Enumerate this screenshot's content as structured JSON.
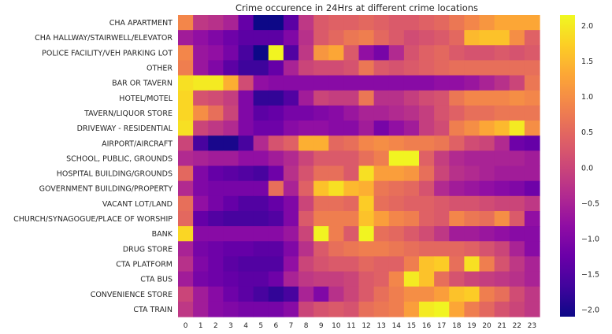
{
  "chart_data": {
    "type": "heatmap",
    "title": "Crime occurence in 24Hrs at different crime locations",
    "xlabel": "",
    "ylabel": "",
    "colormap": "plasma",
    "vmin": -2.1,
    "vmax": 2.15,
    "colorbar_ticks": [
      "2.0",
      "1.5",
      "1.0",
      "0.5",
      "0.0",
      "−0.5",
      "−1.0",
      "−1.5",
      "−2.0"
    ],
    "colorbar_tick_values": [
      2.0,
      1.5,
      1.0,
      0.5,
      0.0,
      -0.5,
      -1.0,
      -1.5,
      -2.0
    ],
    "x": [
      "0",
      "1",
      "2",
      "3",
      "4",
      "5",
      "6",
      "7",
      "8",
      "9",
      "10",
      "11",
      "12",
      "13",
      "14",
      "15",
      "16",
      "17",
      "18",
      "19",
      "20",
      "21",
      "22",
      "23"
    ],
    "y": [
      "CHA APARTMENT",
      "CHA HALLWAY/STAIRWELL/ELEVATOR",
      "POLICE FACILITY/VEH PARKING LOT",
      "OTHER",
      "BAR OR TAVERN",
      "HOTEL/MOTEL",
      "TAVERN/LIQUOR STORE",
      "DRIVEWAY - RESIDENTIAL",
      "AIRPORT/AIRCRAFT",
      "SCHOOL, PUBLIC, GROUNDS",
      "HOSPITAL BUILDING/GROUNDS",
      "GOVERNMENT BUILDING/PROPERTY",
      "VACANT LOT/LAND",
      "CHURCH/SYNAGOGUE/PLACE OF WORSHIP",
      "BANK",
      "DRUG STORE",
      "CTA PLATFORM",
      "CTA BUS",
      "CONVENIENCE STORE",
      "CTA TRAIN"
    ],
    "values": [
      [
        0.9,
        -0.2,
        -0.3,
        -0.5,
        -1.3,
        -2.1,
        -2.1,
        -1.4,
        -0.2,
        0.3,
        0.4,
        0.4,
        0.5,
        0.4,
        0.3,
        0.3,
        0.4,
        0.5,
        0.7,
        0.9,
        1.1,
        1.3,
        1.3,
        1.3
      ],
      [
        -0.6,
        -0.8,
        -1.0,
        -1.2,
        -1.4,
        -1.4,
        -1.4,
        -1.0,
        -0.3,
        0.3,
        0.5,
        0.7,
        0.8,
        0.5,
        0.3,
        0.1,
        0.2,
        0.3,
        0.5,
        1.5,
        1.6,
        1.6,
        1.0,
        0.4
      ],
      [
        0.9,
        -0.7,
        -0.8,
        -1.1,
        -1.6,
        -2.1,
        2.1,
        -1.5,
        -0.2,
        1.1,
        1.3,
        0.3,
        -0.8,
        -1.1,
        -0.4,
        0.2,
        0.4,
        0.5,
        0.3,
        0.2,
        0.2,
        0.3,
        0.2,
        0.3
      ],
      [
        0.8,
        -0.7,
        -1.0,
        -1.4,
        -1.7,
        -1.7,
        -1.3,
        -0.5,
        0.0,
        0.1,
        0.1,
        0.2,
        0.7,
        0.3,
        0.2,
        0.3,
        0.4,
        0.5,
        0.6,
        0.6,
        0.6,
        0.6,
        0.6,
        0.6
      ],
      [
        1.9,
        2.0,
        2.0,
        1.4,
        0.1,
        -0.8,
        -0.9,
        -0.9,
        -0.9,
        -0.9,
        -0.9,
        -0.9,
        -0.9,
        -0.9,
        -0.9,
        -0.9,
        -0.9,
        -0.8,
        -0.8,
        -0.7,
        -0.5,
        -0.3,
        0.0,
        0.7
      ],
      [
        1.8,
        0.2,
        0.1,
        -0.1,
        -1.0,
        -1.8,
        -1.8,
        -1.5,
        -0.6,
        0.0,
        -0.1,
        -0.1,
        0.7,
        -0.3,
        -0.3,
        -0.1,
        0.1,
        0.2,
        0.7,
        0.9,
        0.9,
        0.9,
        1.0,
        0.9
      ],
      [
        1.8,
        1.0,
        0.6,
        0.0,
        -1.0,
        -1.4,
        -1.3,
        -1.1,
        -1.1,
        -1.0,
        -0.9,
        -0.7,
        -0.5,
        -0.5,
        -0.4,
        -0.3,
        -0.1,
        0.2,
        0.4,
        0.6,
        0.6,
        0.7,
        0.7,
        0.7
      ],
      [
        1.9,
        0.0,
        -0.2,
        -0.4,
        -1.0,
        -1.2,
        -1.2,
        -0.9,
        -0.8,
        -0.8,
        -0.9,
        -0.9,
        -0.6,
        -1.1,
        -0.8,
        -0.6,
        -0.1,
        0.1,
        0.8,
        1.0,
        1.3,
        1.5,
        2.0,
        1.0
      ],
      [
        0.0,
        -1.6,
        -2.0,
        -2.0,
        -1.6,
        -0.4,
        0.2,
        0.4,
        1.4,
        1.4,
        0.5,
        0.6,
        0.9,
        1.0,
        0.9,
        0.8,
        0.8,
        0.7,
        0.4,
        0.1,
        0.0,
        -0.4,
        -1.2,
        -1.3
      ],
      [
        -0.4,
        -0.5,
        -0.6,
        -0.6,
        -0.8,
        -0.8,
        -0.6,
        -0.4,
        0.0,
        0.3,
        0.3,
        0.3,
        0.6,
        0.8,
        2.1,
        2.1,
        0.4,
        -0.1,
        -0.4,
        -0.5,
        -0.5,
        -0.5,
        -0.5,
        -0.6
      ],
      [
        0.5,
        -1.0,
        -1.3,
        -1.4,
        -1.5,
        -1.6,
        -1.2,
        -0.3,
        0.2,
        0.6,
        0.6,
        0.3,
        1.9,
        1.2,
        1.2,
        1.1,
        0.6,
        0.0,
        -0.3,
        -0.4,
        -0.5,
        -0.6,
        -0.6,
        -0.6
      ],
      [
        -0.4,
        -1.0,
        -1.1,
        -1.1,
        -1.1,
        -1.1,
        0.6,
        -0.5,
        0.4,
        1.6,
        1.9,
        1.5,
        1.4,
        0.7,
        0.6,
        0.5,
        0.2,
        -0.4,
        -0.6,
        -0.7,
        -0.8,
        -0.9,
        -1.0,
        -1.2
      ],
      [
        0.6,
        -0.8,
        -1.1,
        -1.3,
        -1.5,
        -1.5,
        -1.3,
        -1.0,
        0.0,
        0.6,
        0.6,
        0.5,
        1.7,
        0.6,
        0.5,
        0.4,
        0.4,
        0.3,
        0.2,
        0.2,
        0.1,
        0.0,
        0.0,
        -0.2
      ],
      [
        0.5,
        -1.3,
        -1.5,
        -1.6,
        -1.6,
        -1.6,
        -1.5,
        -1.0,
        0.3,
        0.8,
        0.8,
        0.8,
        1.6,
        1.2,
        0.9,
        0.8,
        0.4,
        0.3,
        0.9,
        0.7,
        0.6,
        1.0,
        0.3,
        -0.8
      ],
      [
        1.8,
        -0.9,
        -0.9,
        -0.9,
        -0.9,
        -0.9,
        -0.9,
        -0.7,
        0.0,
        2.1,
        0.8,
        0.3,
        2.1,
        0.6,
        0.5,
        0.3,
        0.1,
        -0.2,
        -0.6,
        -0.6,
        -0.7,
        -0.8,
        -0.9,
        -0.9
      ],
      [
        -0.5,
        -1.1,
        -1.2,
        -1.3,
        -1.3,
        -1.4,
        -1.4,
        -1.0,
        -0.3,
        0.3,
        0.6,
        0.7,
        0.8,
        0.8,
        0.7,
        0.6,
        0.5,
        0.5,
        0.5,
        0.4,
        0.2,
        0.0,
        -0.5,
        -0.9
      ],
      [
        -0.3,
        -1.0,
        -1.2,
        -1.4,
        -1.5,
        -1.5,
        -1.5,
        -0.8,
        0.0,
        0.2,
        0.3,
        0.3,
        0.5,
        0.4,
        0.4,
        0.8,
        1.6,
        1.7,
        0.6,
        1.9,
        0.8,
        0.2,
        -0.2,
        -0.5
      ],
      [
        -0.6,
        -1.1,
        -1.2,
        -1.3,
        -1.4,
        -1.4,
        -1.2,
        -0.5,
        -0.2,
        -0.1,
        -0.1,
        0.0,
        0.3,
        0.4,
        0.9,
        2.0,
        1.6,
        0.6,
        0.2,
        0.0,
        -0.1,
        -0.2,
        -0.3,
        -0.5
      ],
      [
        0.0,
        -0.6,
        -0.9,
        -1.2,
        -1.4,
        -1.6,
        -1.8,
        -1.6,
        -0.5,
        -1.0,
        -0.3,
        0.0,
        0.3,
        0.6,
        0.8,
        1.0,
        1.0,
        1.2,
        1.6,
        1.7,
        0.8,
        0.6,
        0.1,
        -0.2
      ],
      [
        -0.2,
        -0.6,
        -0.9,
        -1.0,
        -1.1,
        -1.1,
        -1.1,
        -0.9,
        0.0,
        0.2,
        0.3,
        0.2,
        0.6,
        0.7,
        0.8,
        1.2,
        2.0,
        2.1,
        1.3,
        0.8,
        0.5,
        0.2,
        0.0,
        -0.2
      ]
    ]
  }
}
